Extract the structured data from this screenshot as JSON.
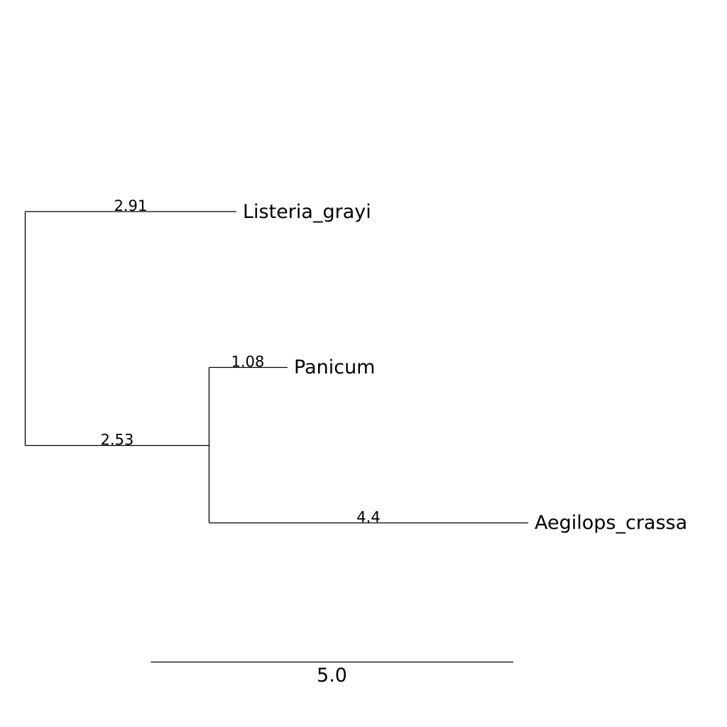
{
  "tree": {
    "leaves": [
      {
        "name": "Listeria_grayi",
        "branch_length": "2.91"
      },
      {
        "name": "Panicum",
        "branch_length": "1.08"
      },
      {
        "name": "Aegilops_crassa",
        "branch_length": "4.4"
      }
    ],
    "internal_branch_length": "2.53",
    "newick": "(Listeria_grayi:2.91,(Panicum:1.08,Aegilops_crassa:4.4):2.53);"
  },
  "scale_bar": {
    "value": 5.0,
    "label": "5.0"
  },
  "colors": {
    "line": "#000000",
    "background": "#ffffff"
  }
}
